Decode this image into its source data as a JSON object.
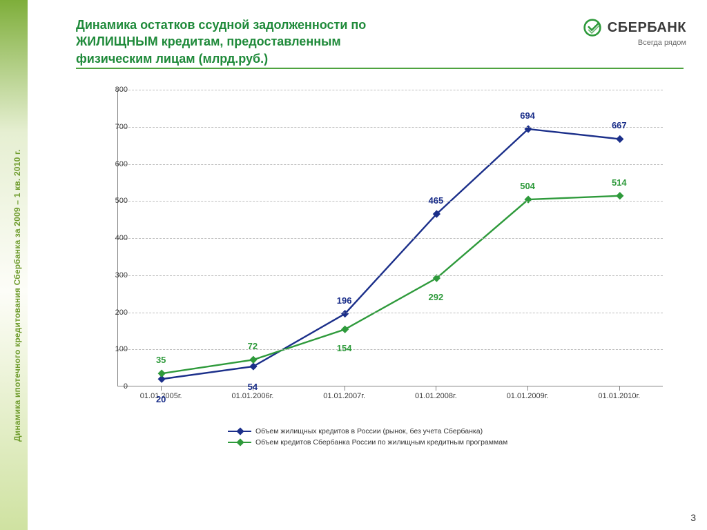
{
  "sidebar_vertical_text": "Динамика ипотечного кредитования Сбербанка за 2009 – 1 кв. 2010 г.",
  "title": {
    "line1": "Динамика остатков ссудной задолженности по",
    "line2": "ЖИЛИЩНЫМ кредитам, предоставленным",
    "line3": "физическим лицам (млрд.руб.)"
  },
  "brand": {
    "name": "СБЕРБАНК",
    "tagline": "Всегда рядом"
  },
  "page_number": "3",
  "chart": {
    "type": "line",
    "ylim": [
      0,
      800
    ],
    "ytick_step": 100,
    "yticks": [
      0,
      100,
      200,
      300,
      400,
      500,
      600,
      700,
      800
    ],
    "categories": [
      "01.01.2005г.",
      "01.01.2006г.",
      "01.01.2007г.",
      "01.01.2008г.",
      "01.01.2009г.",
      "01.01.2010г."
    ],
    "grid_color": "#bdbdbd",
    "axis_color": "#808080",
    "background_color": "#ffffff",
    "tick_fontsize": 11,
    "label_fontsize": 13,
    "line_width": 2.4,
    "marker": "diamond",
    "marker_size": 8,
    "series": [
      {
        "name": "Объем жилищных кредитов в России (рынок, без учета Сбербанка)",
        "color": "#1b2f8a",
        "label_color": "#1b2f8a",
        "values": [
          20,
          54,
          196,
          465,
          694,
          667
        ],
        "label_offset_y": [
          22,
          22,
          -12,
          -12,
          -12,
          -12
        ]
      },
      {
        "name": "Объем кредитов Сбербанка России по жилищным кредитным программам",
        "color": "#2e9a3b",
        "label_color": "#2e9a3b",
        "values": [
          35,
          72,
          154,
          292,
          504,
          514
        ],
        "label_offset_y": [
          -12,
          -12,
          20,
          20,
          -12,
          -12
        ]
      }
    ]
  }
}
